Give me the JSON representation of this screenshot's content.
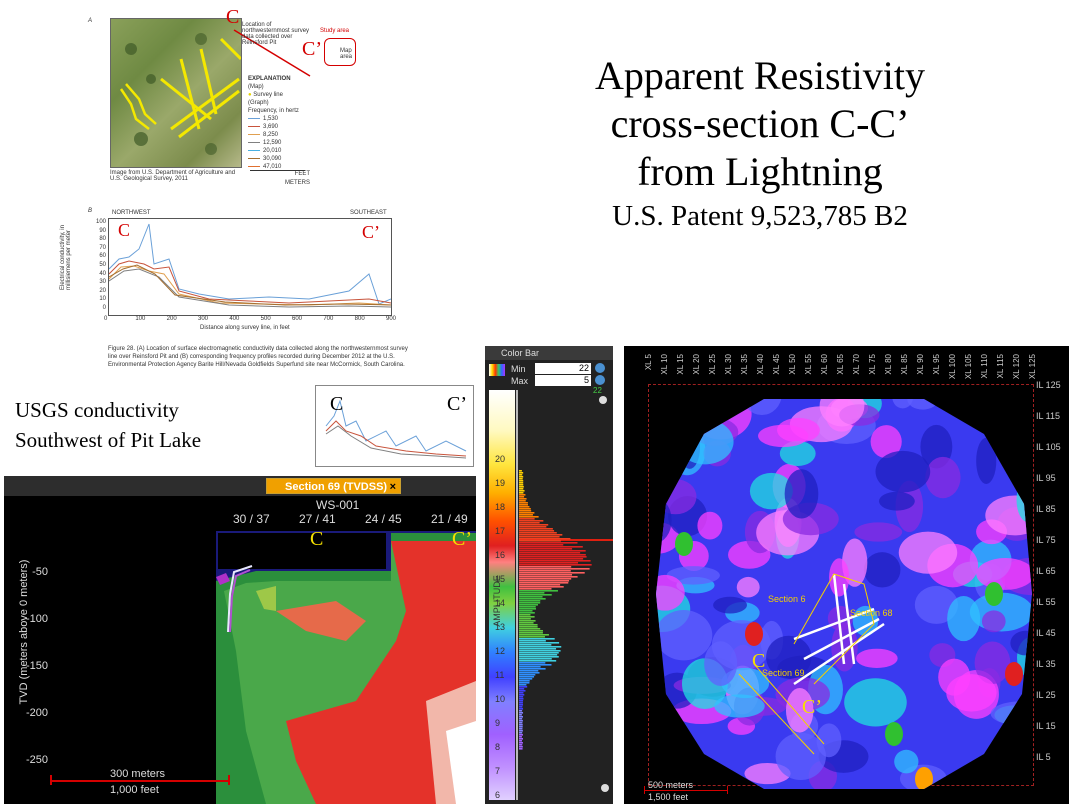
{
  "title": {
    "line1": "Apparent Resistivity",
    "line2": "cross-section C-C’",
    "line3": "from Lightning",
    "line4": "U.S. Patent 9,523,785 B2"
  },
  "figure_a": {
    "panel_letter": "A",
    "c_label": "C",
    "c_prime_label": "C’",
    "callout": "Location of northwesternmost survey data collected over Reinsford Pit",
    "inset_label": "Study area",
    "inset_map_label": "Map area",
    "legend_title": "EXPLANATION",
    "legend_map": "(Map)",
    "legend_survey_line": "Survey line",
    "legend_graph": "(Graph)",
    "legend_freq": "Frequency, in hertz",
    "frequencies": [
      "1,530",
      "3,690",
      "8,250",
      "12,590",
      "20,010",
      "30,090",
      "47,010"
    ],
    "image_credit": "Image from U.S. Department of Agriculture and U.S. Geological Survey, 2011",
    "scale_feet": "FEET",
    "scale_meters": "METERS"
  },
  "figure_b": {
    "panel_letter": "B",
    "northwest": "NORTHWEST",
    "southeast": "SOUTHEAST",
    "c_label": "C",
    "c_prime_label": "C’",
    "ylabel": "Electrical conductivity, in millisiemens per meter",
    "xlabel": "Distance along survey line, in feet",
    "y_ticks": [
      "100",
      "90",
      "80",
      "70",
      "60",
      "50",
      "40",
      "30",
      "20",
      "10",
      "0"
    ],
    "x_ticks": [
      "0",
      "100",
      "200",
      "300",
      "400",
      "500",
      "600",
      "700",
      "800",
      "900"
    ]
  },
  "caption": {
    "text": "Figure 28. (A) Location of surface electromagnetic conductivity data collected along the northwesternmost survey line over Reinsford Pit and (B) corresponding frequency profiles recorded during December 2012 at the U.S. Environmental Protection Agency Barite Hill/Nevada Goldfields Superfund site near McCormick, South Carolina."
  },
  "usgs": {
    "line1": "USGS conductivity",
    "line2": "Southwest of Pit Lake"
  },
  "small_graph": {
    "c_label": "C",
    "c_prime_label": "C’"
  },
  "section_panel": {
    "tab_label": "Section 69 (TVDSS)",
    "close": "×",
    "well": "WS-001",
    "top_ticks": [
      "30 / 37",
      "27 / 41",
      "24 / 45",
      "21 / 49"
    ],
    "ylabel": "TVD (meters above 0 meters)",
    "y_ticks": [
      "-50",
      "-100",
      "-150",
      "-200",
      "-250"
    ],
    "c_label": "C",
    "c_prime_label": "C’",
    "scale_meters": "300 meters",
    "scale_feet": "1,000 feet"
  },
  "color_bar": {
    "header": "Color Bar",
    "min_label": "Min",
    "min_value": "22",
    "max_label": "Max",
    "max_value": "5",
    "top_value": "22",
    "ticks": [
      "20",
      "19",
      "18",
      "17",
      "16",
      "15",
      "14",
      "13",
      "12",
      "11",
      "10",
      "9",
      "8",
      "7",
      "6"
    ],
    "axis_label": "AMPLITUDE"
  },
  "map_view": {
    "xl_labels": [
      "XL 5",
      "XL 10",
      "XL 15",
      "XL 20",
      "XL 25",
      "XL 30",
      "XL 35",
      "XL 40",
      "XL 45",
      "XL 50",
      "XL 55",
      "XL 60",
      "XL 65",
      "XL 70",
      "XL 75",
      "XL 80",
      "XL 85",
      "XL 90",
      "XL 95",
      "XL 100",
      "XL 105",
      "XL 110",
      "XL 115",
      "XL 120",
      "XL 125"
    ],
    "il_labels": [
      "IL 125",
      "IL 115",
      "IL 105",
      "IL 95",
      "IL 85",
      "IL 75",
      "IL 65",
      "IL 55",
      "IL 45",
      "IL 35",
      "IL 25",
      "IL 15",
      "IL 5"
    ],
    "section_a": "Section 6",
    "section_b": "Section 68",
    "section_c": "Section 69",
    "c_label": "C",
    "c_prime_label": "C’",
    "scale_meters": "500 meters",
    "scale_feet": "1,500 feet"
  },
  "colors": {
    "red_label": "#d40000",
    "yellow_label": "#f5e000",
    "tab_orange": "#f0a000"
  }
}
